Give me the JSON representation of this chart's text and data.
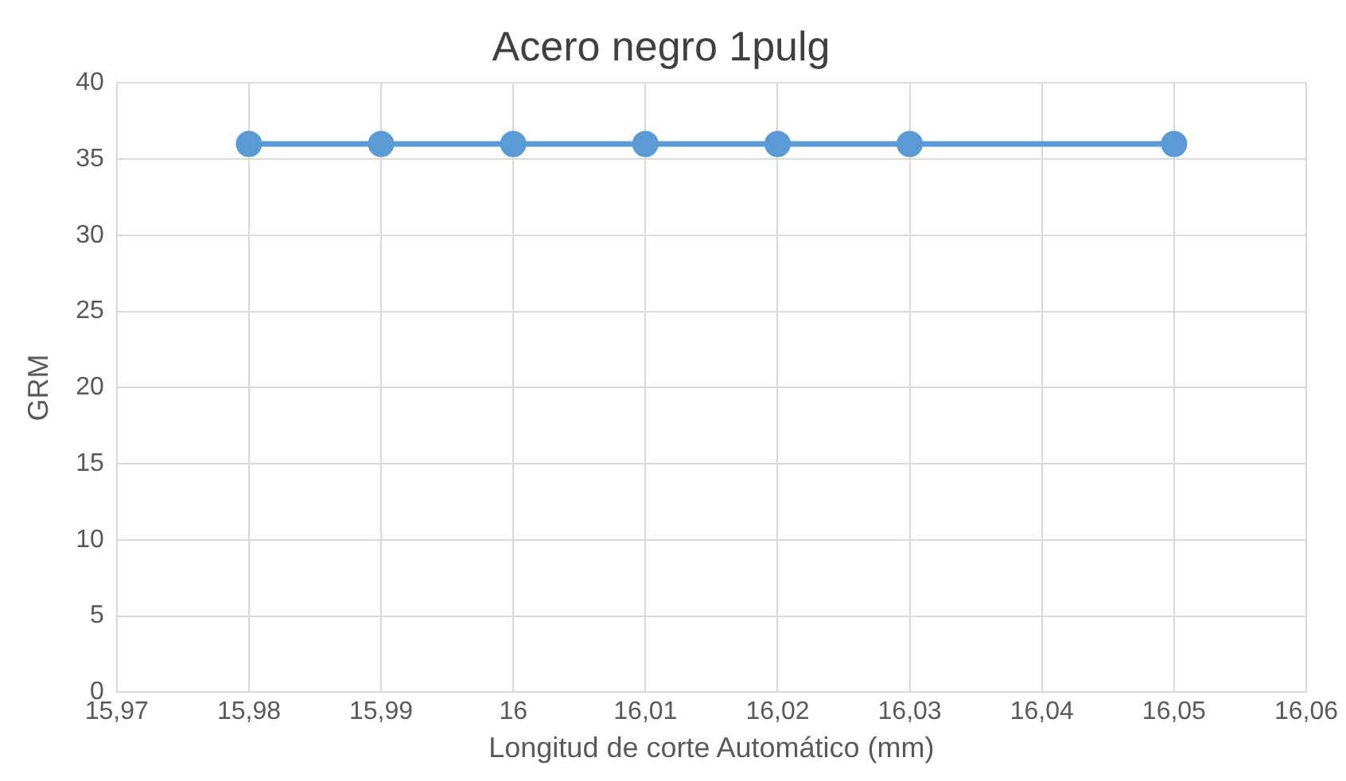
{
  "chart_data": {
    "type": "line",
    "title": "Acero negro 1pulg",
    "xlabel": "Longitud de corte Automático (mm)",
    "ylabel": "GRM",
    "series": [
      {
        "color": "#5b9bd5",
        "x": [
          15.98,
          15.99,
          16,
          16.01,
          16.02,
          16.03,
          16.05
        ],
        "values": [
          36,
          36,
          36,
          36,
          36,
          36,
          36
        ]
      }
    ],
    "xlim": [
      15.97,
      16.06
    ],
    "xticks": [
      {
        "value": 15.97,
        "label": "15,97"
      },
      {
        "value": 15.98,
        "label": "15,98"
      },
      {
        "value": 15.99,
        "label": "15,99"
      },
      {
        "value": 16,
        "label": "16"
      },
      {
        "value": 16.01,
        "label": "16,01"
      },
      {
        "value": 16.02,
        "label": "16,02"
      },
      {
        "value": 16.03,
        "label": "16,03"
      },
      {
        "value": 16.04,
        "label": "16,04"
      },
      {
        "value": 16.05,
        "label": "16,05"
      },
      {
        "value": 16.06,
        "label": "16,06"
      }
    ],
    "ylim": [
      0,
      40
    ],
    "yticks": [
      0,
      5,
      10,
      15,
      20,
      25,
      30,
      35,
      40
    ],
    "grid": true,
    "legend": false,
    "marker": "circle",
    "line_style": "solid"
  }
}
